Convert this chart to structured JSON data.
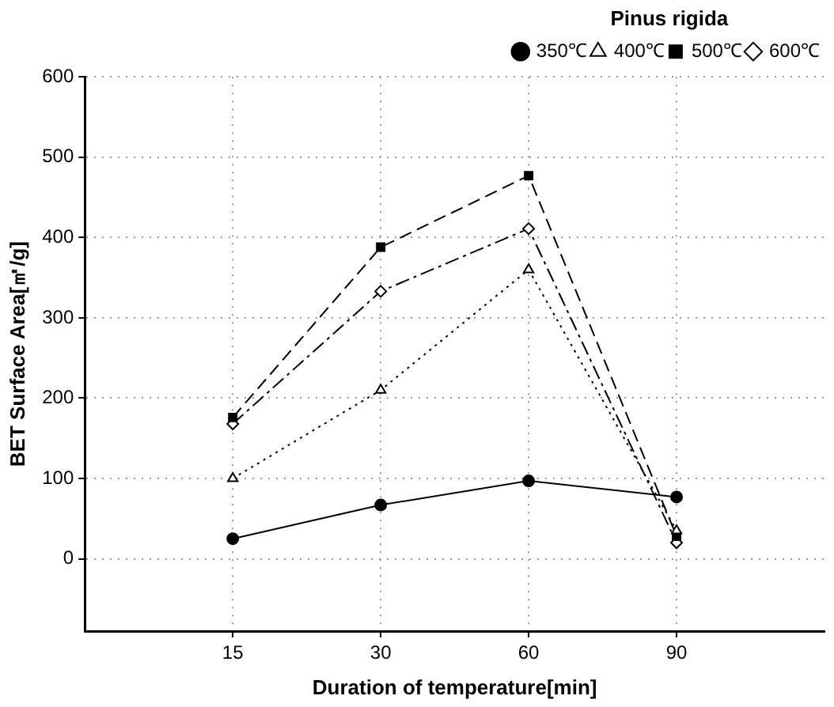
{
  "chart_data": {
    "type": "line",
    "xlabel": "Duration of temperature[min]",
    "ylabel": "BET Surface Area[㎡/g]",
    "legend_title": "Pinus rigida",
    "categories": [
      "15",
      "30",
      "60",
      "90"
    ],
    "ylim": [
      -90,
      600
    ],
    "yticks": [
      0,
      100,
      200,
      300,
      400,
      500,
      600
    ],
    "grid": true,
    "legend": "top right",
    "series": [
      {
        "name": "350℃",
        "color": "#000000",
        "marker": "circle",
        "line_style": "solid",
        "values": [
          25,
          67,
          97,
          77
        ]
      },
      {
        "name": "400℃",
        "color": "#000000",
        "marker": "triangle",
        "line_style": "dotted",
        "values": [
          100,
          210,
          360,
          35
        ]
      },
      {
        "name": "500℃",
        "color": "#000000",
        "marker": "square",
        "line_style": "dashed",
        "values": [
          176,
          388,
          477,
          28
        ]
      },
      {
        "name": "600℃",
        "color": "#000000",
        "marker": "diamond",
        "line_style": "dashdot",
        "values": [
          168,
          333,
          411,
          20
        ]
      }
    ]
  }
}
